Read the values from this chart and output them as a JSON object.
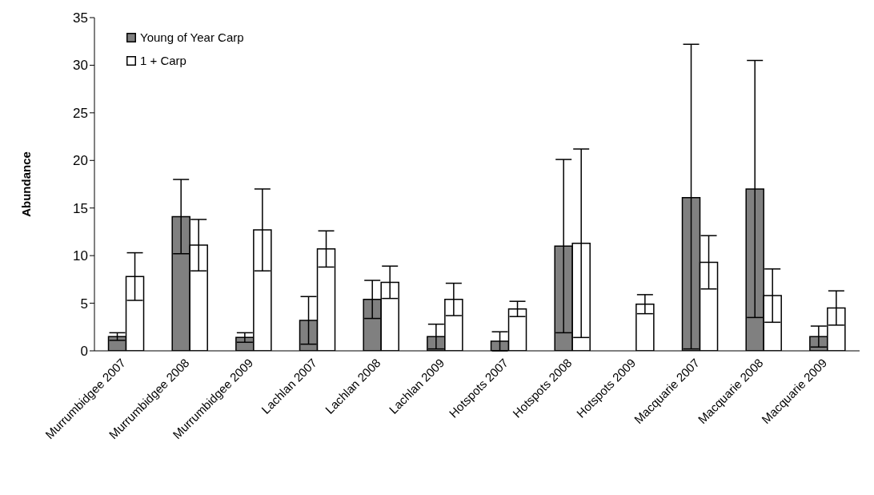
{
  "chart_data": {
    "type": "bar",
    "ylabel": "Abundance",
    "categories": [
      "Murrumbidgee 2007",
      "Murrumbidgee 2008",
      "Murrumbidgee 2009",
      "Lachlan 2007",
      "Lachlan 2008",
      "Lachlan 2009",
      "Hotspots 2007",
      "Hotspots 2008",
      "Hotspots 2009",
      "Macquarie 2007",
      "Macquarie 2008",
      "Macquarie 2009"
    ],
    "series": [
      {
        "name": "Young of Year Carp",
        "color": "#808080",
        "values": [
          1.5,
          14.1,
          1.4,
          3.2,
          5.4,
          1.5,
          1.0,
          11.0,
          0,
          16.1,
          17.0,
          1.5
        ],
        "errors": [
          0.4,
          3.9,
          0.5,
          2.5,
          2.0,
          1.3,
          1.0,
          9.1,
          null,
          [
            0.2,
            32.2
          ],
          [
            3.5,
            30.5
          ],
          1.1
        ]
      },
      {
        "name": "1 + Carp",
        "color": "#ffffff",
        "values": [
          7.8,
          11.1,
          12.7,
          10.7,
          7.2,
          5.4,
          4.4,
          11.3,
          4.9,
          9.3,
          5.8,
          4.5
        ],
        "errors": [
          2.5,
          2.7,
          4.3,
          1.9,
          1.7,
          1.7,
          0.8,
          9.9,
          1.0,
          2.8,
          2.8,
          1.8
        ]
      }
    ],
    "ylim": [
      0,
      35
    ],
    "yticks": [
      0,
      5,
      10,
      15,
      20,
      25,
      30,
      35
    ],
    "grid": false,
    "legend": "top left"
  }
}
